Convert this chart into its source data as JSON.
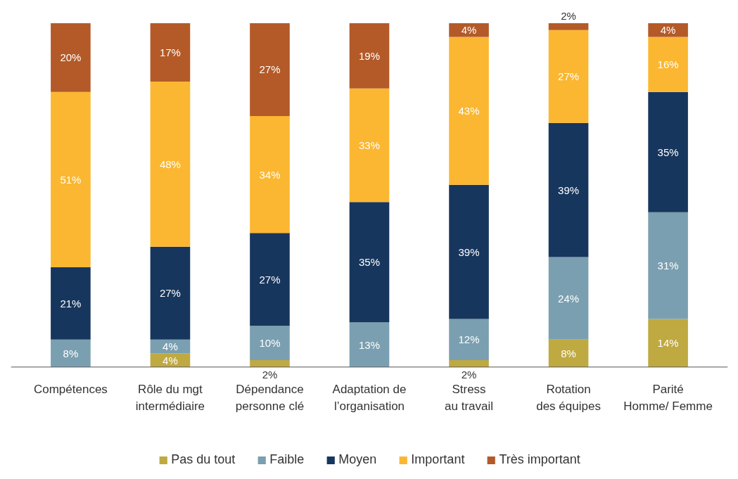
{
  "chart_data": {
    "type": "bar",
    "stacked": true,
    "legend": "bottom",
    "grid": false,
    "categories": [
      "Compétences",
      "Rôle du mgt\nintermédiaire",
      "Dépendance\npersonne clé",
      "Adaptation de\nl’organisation",
      "Stress\nau travail",
      "Rotation\ndes équipes",
      "Parité\nHomme/ Femme"
    ],
    "series": [
      {
        "name": "Pas du tout",
        "color": "#bfa941",
        "values": [
          null,
          4,
          2,
          null,
          2,
          8,
          14
        ],
        "value_labels": [
          null,
          "4%",
          "2%",
          null,
          "2%",
          "8%",
          "14%"
        ]
      },
      {
        "name": "Faible",
        "color": "#7a9fb0",
        "values": [
          8,
          4,
          10,
          13,
          12,
          24,
          31
        ],
        "value_labels": [
          "8%",
          "4%",
          "10%",
          "13%",
          "12%",
          "24%",
          "31%"
        ]
      },
      {
        "name": "Moyen",
        "color": "#17365d",
        "values": [
          21,
          27,
          27,
          35,
          39,
          39,
          35
        ],
        "value_labels": [
          "21%",
          "27%",
          "27%",
          "35%",
          "39%",
          "39%",
          "35%"
        ]
      },
      {
        "name": "Important",
        "color": "#fbb731",
        "values": [
          51,
          48,
          34,
          33,
          43,
          27,
          16
        ],
        "value_labels": [
          "51%",
          "48%",
          "34%",
          "33%",
          "43%",
          "27%",
          "16%"
        ]
      },
      {
        "name": "Très important",
        "color": "#b35a28",
        "values": [
          20,
          17,
          27,
          19,
          4,
          2,
          4
        ],
        "value_labels": [
          "20%",
          "17%",
          "27%",
          "19%",
          "4%",
          "2%",
          "4%"
        ]
      }
    ]
  }
}
